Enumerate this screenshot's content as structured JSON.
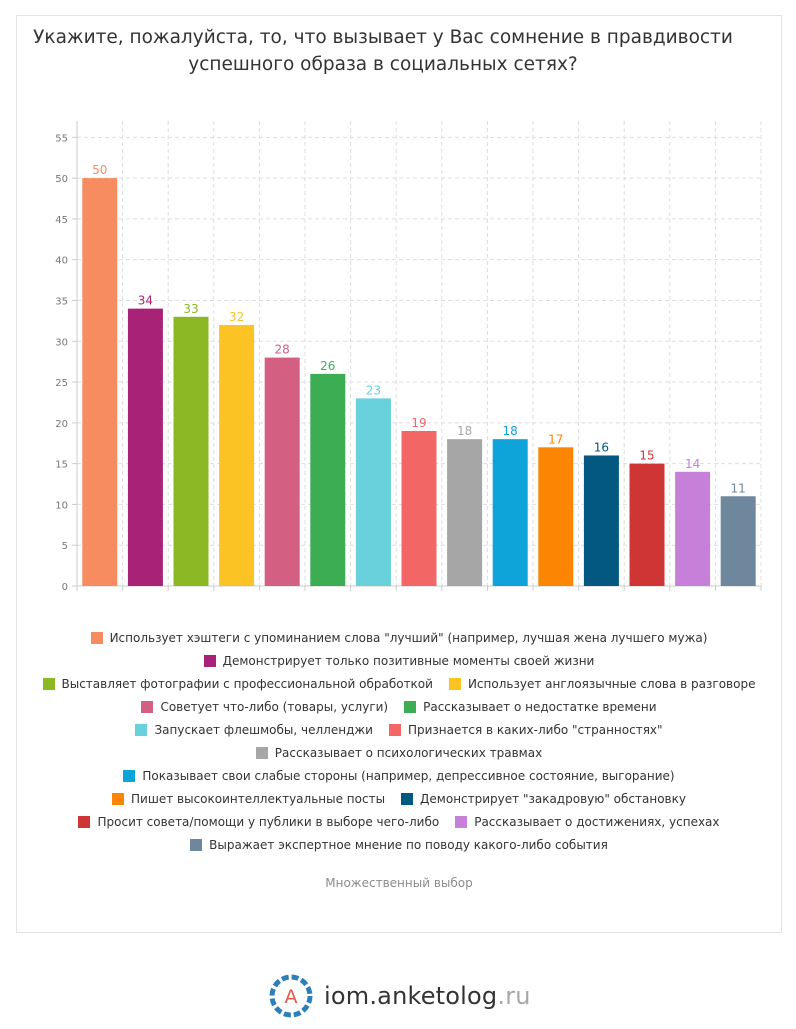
{
  "title_lines": [
    "Укажите, пожалуйста, то, что вызывает у Вас сомнение в правдивости",
    "успешного образа в социальных сетях?"
  ],
  "chart_data": {
    "type": "bar",
    "categories": [
      "Использует хэштеги с упоминанием слова \"лучший\" (например, лучшая жена лучшего мужа)",
      "Демонстрирует только позитивные моменты своей жизни",
      "Выставляет фотографии с профессиональной обработкой",
      "Использует англоязычные слова в разговоре",
      "Советует что-либо (товары, услуги)",
      "Рассказывает о недостатке времени",
      "Запускает флешмобы, челленджи",
      "Признается в каких-либо \"странностях\"",
      "Рассказывает о психологических травмах",
      "Показывает свои слабые стороны (например, депрессивное состояние, выгорание)",
      "Пишет высокоинтеллектуальные посты",
      "Демонстрирует \"закадровую\" обстановку",
      "Просит совета/помощи у публики в выборе чего-либо",
      "Рассказывает о достижениях, успехах",
      "Выражает экспертное мнение по поводу какого-либо события"
    ],
    "values": [
      50,
      34,
      33,
      32,
      28,
      26,
      23,
      19,
      18,
      18,
      17,
      16,
      15,
      14,
      11
    ],
    "colors": [
      "#f68c5f",
      "#a82377",
      "#8cb825",
      "#fbc323",
      "#d35f83",
      "#3dad54",
      "#68d1dc",
      "#f26666",
      "#a6a6a6",
      "#0ea4d9",
      "#fc8504",
      "#025880",
      "#d03535",
      "#c680da",
      "#6e879c"
    ],
    "label_colors": [
      "#f68c5f",
      "#a82377",
      "#8cb825",
      "#fbc323",
      "#d35f83",
      "#3dad54",
      "#68d1dc",
      "#f26666",
      "#a6a6a6",
      "#0ea4d9",
      "#fc8504",
      "#025880",
      "#d03535",
      "#c680da",
      "#6e879c"
    ],
    "y_ticks": [
      "0",
      "5",
      "10",
      "15",
      "20",
      "25",
      "30",
      "35",
      "40",
      "45",
      "50",
      "55"
    ],
    "ylim": [
      0,
      57
    ],
    "grid": true,
    "legend_position": "bottom"
  },
  "legend_rows": [
    [
      0
    ],
    [
      1
    ],
    [
      2,
      3
    ],
    [
      4,
      5
    ],
    [
      6,
      7
    ],
    [
      8
    ],
    [
      9
    ],
    [
      10,
      11
    ],
    [
      12,
      13
    ],
    [
      14
    ]
  ],
  "footnote": "Множественный выбор",
  "brand": {
    "logo_letter": "A",
    "name": "iom.anketolog",
    "suffix": ".ru",
    "logo_color": "#2d7fb8",
    "logo_letter_color": "#e05a4f"
  }
}
